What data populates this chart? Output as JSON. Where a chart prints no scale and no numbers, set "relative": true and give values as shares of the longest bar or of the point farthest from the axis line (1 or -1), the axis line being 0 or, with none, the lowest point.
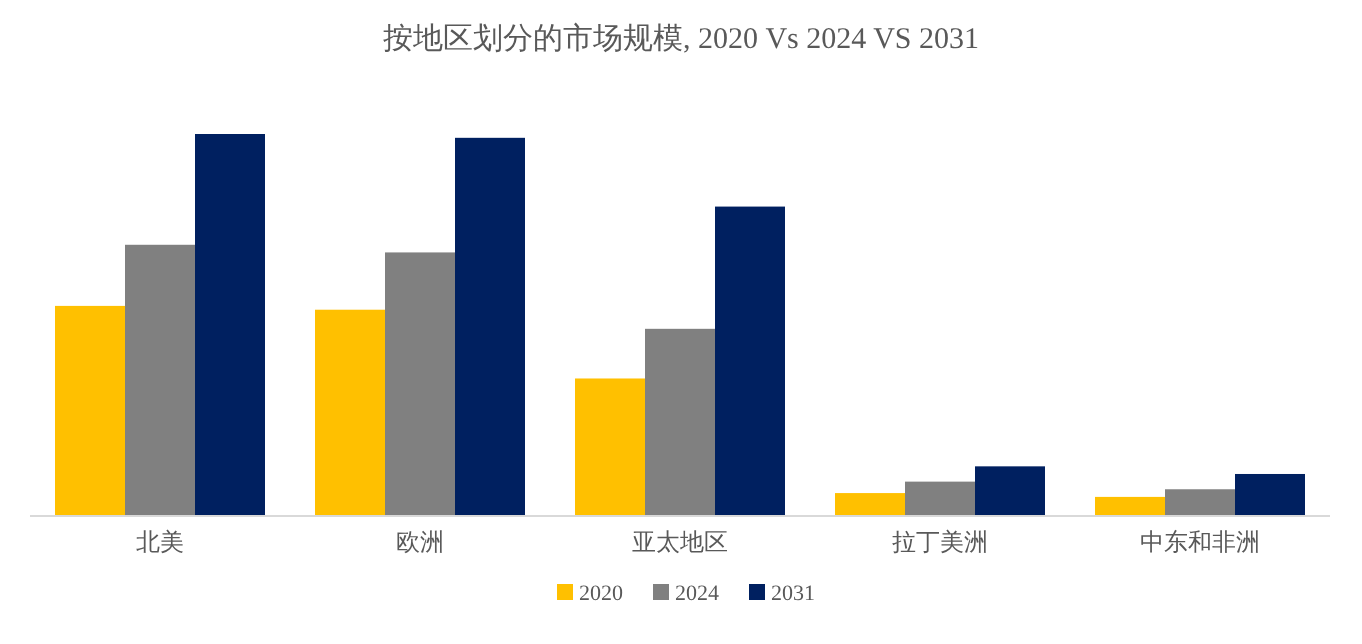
{
  "chart_data": {
    "type": "bar",
    "title": "按地区划分的市场规模, 2020 Vs 2024 VS 2031",
    "relative": true,
    "legend": "bottom",
    "categories": [
      "北美",
      "欧洲",
      "亚太地区",
      "拉丁美洲",
      "中东和非洲"
    ],
    "series": [
      {
        "name": "2020",
        "color": "#ffc000",
        "values": [
          0.55,
          0.54,
          0.36,
          0.06,
          0.05
        ]
      },
      {
        "name": "2024",
        "color": "#808080",
        "values": [
          0.71,
          0.69,
          0.49,
          0.09,
          0.07
        ]
      },
      {
        "name": "2031",
        "color": "#002060",
        "values": [
          1,
          0.99,
          0.81,
          0.13,
          0.11
        ]
      }
    ]
  }
}
